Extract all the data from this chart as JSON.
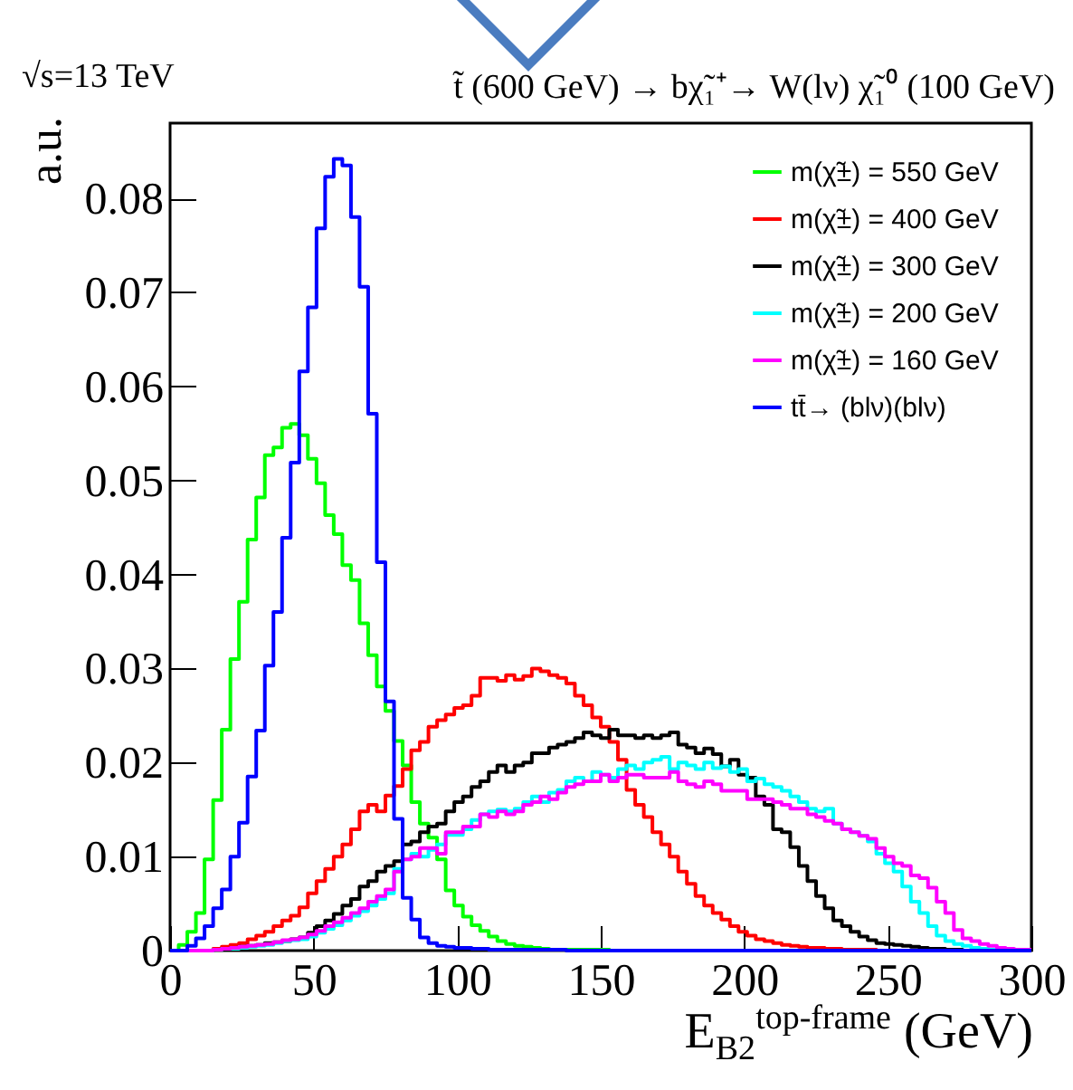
{
  "chart_data": {
    "type": "histogram",
    "title": "t̃ (600 GeV) → bχ̃₁⁺→ W(lν) χ̃₁⁰ (100 GeV)",
    "subtitle": "√s=13 TeV",
    "xlabel": "E$_{B2}$$^{top-frame}$ (GeV)",
    "ylabel": "a.u.",
    "bins": [
      0,
      3,
      6,
      9,
      12,
      15,
      18,
      21,
      24,
      27,
      30,
      33,
      36,
      39,
      42,
      45,
      48,
      51,
      54,
      57,
      60,
      63,
      66,
      69,
      72,
      75,
      78,
      81,
      84,
      87,
      90,
      93,
      96,
      99,
      102,
      105,
      108,
      111,
      114,
      117,
      120,
      123,
      126,
      129,
      132,
      135,
      138,
      141,
      144,
      147,
      150,
      153,
      156,
      159,
      162,
      165,
      168,
      171,
      174,
      177,
      180,
      183,
      186,
      189,
      192,
      195,
      198,
      201,
      204,
      207,
      210,
      213,
      216,
      219,
      222,
      225,
      228,
      231,
      234,
      237,
      240,
      243,
      246,
      249,
      252,
      255,
      258,
      261,
      264,
      267,
      270,
      273,
      276,
      279,
      282,
      285,
      288,
      291,
      294,
      297,
      300
    ],
    "series": [
      {
        "name": "m(χ̃±) = 550 GeV",
        "color": "#00ff00",
        "values": [
          0,
          0.0006,
          0.002,
          0.004,
          0.0097,
          0.016,
          0.0235,
          0.031,
          0.0371,
          0.0437,
          0.0482,
          0.0527,
          0.0535,
          0.0556,
          0.056,
          0.0548,
          0.0523,
          0.0497,
          0.0463,
          0.0443,
          0.041,
          0.0394,
          0.0348,
          0.0314,
          0.0281,
          0.0255,
          0.0223,
          0.0197,
          0.0158,
          0.0135,
          0.012,
          0.0097,
          0.0064,
          0.0048,
          0.0036,
          0.0027,
          0.0021,
          0.0015,
          0.001,
          0.0007,
          0.0005,
          0.0004,
          0.0003,
          0.0002,
          0.0001,
          0.0001,
          0.0001,
          0.0001,
          0.0001,
          0.0001,
          0.0001,
          0,
          0,
          0,
          0,
          0,
          0,
          0,
          0,
          0,
          0,
          0,
          0,
          0,
          0,
          0,
          0,
          0,
          0,
          0,
          0,
          0,
          0,
          0,
          0,
          0,
          0,
          0,
          0,
          0,
          0,
          0,
          0,
          0,
          0,
          0,
          0,
          0,
          0,
          0,
          0,
          0,
          0,
          0,
          0,
          0,
          0,
          0,
          0,
          0
        ]
      },
      {
        "name": "m(χ̃±) = 400 GeV",
        "color": "#ff0000",
        "values": [
          0,
          0,
          0,
          0,
          0,
          0.0002,
          0.0004,
          0.0006,
          0.0008,
          0.0012,
          0.0016,
          0.002,
          0.0026,
          0.0032,
          0.0037,
          0.0046,
          0.0061,
          0.0074,
          0.0087,
          0.01,
          0.0113,
          0.0129,
          0.0148,
          0.0155,
          0.0148,
          0.0165,
          0.0175,
          0.0193,
          0.0213,
          0.0222,
          0.0238,
          0.0245,
          0.0251,
          0.0258,
          0.0261,
          0.0271,
          0.029,
          0.029,
          0.0287,
          0.0293,
          0.0288,
          0.0292,
          0.03,
          0.0297,
          0.0293,
          0.029,
          0.0284,
          0.0271,
          0.0261,
          0.0248,
          0.0238,
          0.0222,
          0.0203,
          0.0171,
          0.0155,
          0.0142,
          0.0126,
          0.0113,
          0.01,
          0.0084,
          0.0071,
          0.0058,
          0.0048,
          0.004,
          0.0033,
          0.0026,
          0.002,
          0.0016,
          0.0012,
          0.001,
          0.0008,
          0.0006,
          0.0005,
          0.0004,
          0.0003,
          0.0003,
          0.0002,
          0.0002,
          0.0001,
          0.0001,
          0.0001,
          0.0001,
          0,
          0,
          0,
          0,
          0,
          0,
          0,
          0,
          0,
          0,
          0,
          0,
          0,
          0,
          0,
          0,
          0,
          0
        ]
      },
      {
        "name": "m(χ̃±) = 300 GeV",
        "color": "#000000",
        "values": [
          0,
          0,
          0,
          0,
          0,
          0.0001,
          0.0002,
          0.0003,
          0.0004,
          0.0005,
          0.0006,
          0.0008,
          0.0009,
          0.001,
          0.0012,
          0.0014,
          0.0019,
          0.0026,
          0.0032,
          0.0039,
          0.0048,
          0.0055,
          0.0068,
          0.0074,
          0.0084,
          0.009,
          0.0095,
          0.0113,
          0.0116,
          0.0126,
          0.0132,
          0.0135,
          0.0148,
          0.0158,
          0.0164,
          0.0174,
          0.018,
          0.019,
          0.0197,
          0.019,
          0.0197,
          0.02,
          0.021,
          0.021,
          0.0216,
          0.0219,
          0.0222,
          0.0226,
          0.0232,
          0.0229,
          0.0226,
          0.0235,
          0.0229,
          0.0229,
          0.0226,
          0.0229,
          0.0226,
          0.0229,
          0.0232,
          0.0219,
          0.0216,
          0.021,
          0.0215,
          0.0209,
          0.0196,
          0.0203,
          0.0187,
          0.0184,
          0.0164,
          0.0155,
          0.0129,
          0.0126,
          0.011,
          0.009,
          0.0074,
          0.0058,
          0.0045,
          0.0032,
          0.0026,
          0.002,
          0.0015,
          0.0011,
          0.0008,
          0.0007,
          0.0006,
          0.0005,
          0.0004,
          0.0003,
          0.0002,
          0.0002,
          0.0001,
          0.0001,
          0,
          0,
          0,
          0,
          0,
          0,
          0,
          0
        ]
      },
      {
        "name": "m(χ̃±) = 200 GeV",
        "color": "#00ffff",
        "values": [
          0,
          0,
          0,
          0,
          0,
          0.0001,
          0.0002,
          0.0002,
          0.0003,
          0.0004,
          0.0005,
          0.0006,
          0.0008,
          0.001,
          0.0011,
          0.0012,
          0.0015,
          0.0019,
          0.0023,
          0.0027,
          0.0032,
          0.0037,
          0.0042,
          0.0048,
          0.0055,
          0.0061,
          0.0087,
          0.0097,
          0.0103,
          0.01,
          0.0107,
          0.0113,
          0.0123,
          0.0123,
          0.0129,
          0.0139,
          0.0145,
          0.0148,
          0.015,
          0.0148,
          0.0151,
          0.0158,
          0.0164,
          0.0158,
          0.0168,
          0.0171,
          0.018,
          0.0184,
          0.018,
          0.019,
          0.0187,
          0.0184,
          0.0193,
          0.0197,
          0.0193,
          0.02,
          0.0203,
          0.0206,
          0.0193,
          0.02,
          0.0197,
          0.0193,
          0.02,
          0.0194,
          0.0196,
          0.019,
          0.0193,
          0.018,
          0.0183,
          0.0177,
          0.0174,
          0.017,
          0.0164,
          0.0158,
          0.0151,
          0.0148,
          0.0151,
          0.0135,
          0.0129,
          0.0126,
          0.0122,
          0.0116,
          0.0103,
          0.0093,
          0.0084,
          0.0068,
          0.0052,
          0.004,
          0.0026,
          0.0016,
          0.001,
          0.0007,
          0.0005,
          0.0003,
          0.0002,
          0.0001,
          0.0001,
          0,
          0,
          0
        ]
      },
      {
        "name": "m(χ̃±) = 160 GeV",
        "color": "#ff00ff",
        "values": [
          0,
          0,
          0,
          0,
          0,
          0.0001,
          0.0002,
          0.0003,
          0.0004,
          0.0005,
          0.0006,
          0.0007,
          0.0009,
          0.0011,
          0.0012,
          0.0014,
          0.0017,
          0.0021,
          0.0026,
          0.003,
          0.0035,
          0.004,
          0.0045,
          0.0052,
          0.0058,
          0.0065,
          0.0084,
          0.0097,
          0.01,
          0.0109,
          0.0109,
          0.0103,
          0.0126,
          0.0126,
          0.0132,
          0.0132,
          0.0145,
          0.0142,
          0.0148,
          0.0145,
          0.0148,
          0.0155,
          0.0158,
          0.0164,
          0.0161,
          0.0168,
          0.0174,
          0.0177,
          0.018,
          0.018,
          0.0187,
          0.018,
          0.0184,
          0.0187,
          0.0187,
          0.0184,
          0.0184,
          0.0184,
          0.019,
          0.018,
          0.0177,
          0.0174,
          0.018,
          0.0177,
          0.017,
          0.017,
          0.017,
          0.0161,
          0.0161,
          0.0161,
          0.0158,
          0.0155,
          0.0151,
          0.0151,
          0.0145,
          0.0142,
          0.0138,
          0.0135,
          0.0129,
          0.0126,
          0.0122,
          0.0119,
          0.0109,
          0.01,
          0.0093,
          0.009,
          0.008,
          0.0077,
          0.0067,
          0.0052,
          0.004,
          0.0022,
          0.0013,
          0.001,
          0.0007,
          0.0005,
          0.0003,
          0.0002,
          0.0001,
          0.0001
        ]
      },
      {
        "name": "tt̄→ (blν)(blν)",
        "color": "#0000ff",
        "values": [
          0,
          0,
          0.0005,
          0.0013,
          0.0026,
          0.0045,
          0.0065,
          0.01,
          0.0136,
          0.0185,
          0.0234,
          0.0303,
          0.036,
          0.0439,
          0.0519,
          0.0616,
          0.0684,
          0.0768,
          0.0823,
          0.0842,
          0.0835,
          0.078,
          0.0706,
          0.0571,
          0.0413,
          0.0265,
          0.014,
          0.0056,
          0.0033,
          0.0014,
          0.0008,
          0.0005,
          0.0004,
          0.0003,
          0.0003,
          0.0002,
          0.0002,
          0.0001,
          0.0001,
          0.0001,
          0.0001,
          0.0001,
          0.0001,
          0.0001,
          0.0001,
          0.0001,
          0,
          0,
          0,
          0,
          0,
          0,
          0,
          0,
          0,
          0,
          0,
          0,
          0,
          0,
          0,
          0,
          0,
          0,
          0,
          0,
          0,
          0,
          0,
          0,
          0,
          0,
          0,
          0,
          0,
          0,
          0,
          0,
          0,
          0,
          0,
          0,
          0,
          0,
          0,
          0,
          0,
          0,
          0,
          0,
          0,
          0,
          0,
          0,
          0,
          0,
          0,
          0,
          0,
          0
        ]
      }
    ],
    "xlim": [
      0,
      300
    ],
    "xticks": [
      0,
      50,
      100,
      150,
      200,
      250,
      300
    ],
    "ylim": [
      0,
      0.088
    ],
    "yticks": [
      0,
      0.01,
      0.02,
      0.03,
      0.04,
      0.05,
      0.06,
      0.07,
      0.08
    ],
    "legend": "top right"
  }
}
